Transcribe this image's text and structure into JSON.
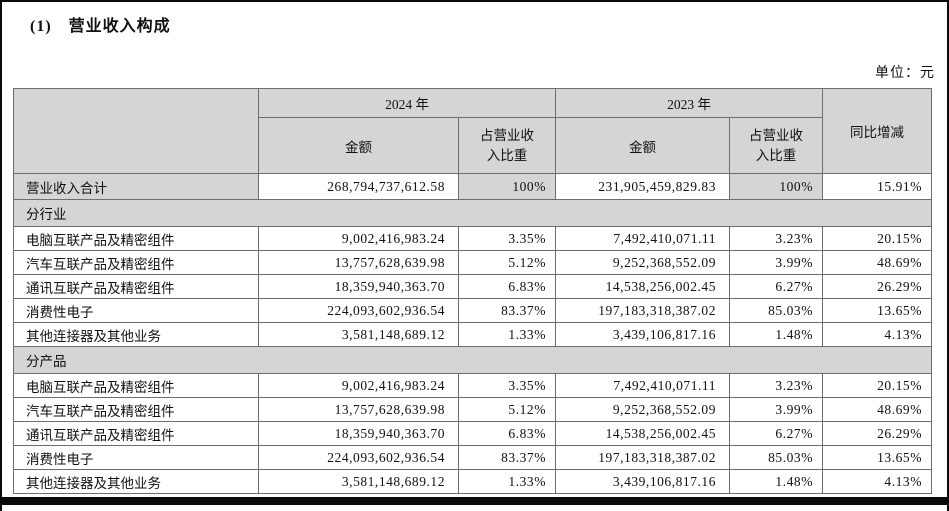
{
  "page": {
    "title": "(1)　营业收入构成",
    "unit_label": "单位：元"
  },
  "table": {
    "header": {
      "year_2024": "2024 年",
      "year_2023": "2023 年",
      "amount": "金额",
      "share": "占营业收\n入比重",
      "yoy": "同比增减"
    },
    "total_row": {
      "label": "营业收入合计",
      "amount_2024": "268,794,737,612.58",
      "share_2024": "100%",
      "amount_2023": "231,905,459,829.83",
      "share_2023": "100%",
      "yoy": "15.91%"
    },
    "sections": [
      {
        "label": "分行业",
        "rows": [
          {
            "label": "电脑互联产品及精密组件",
            "amount_2024": "9,002,416,983.24",
            "share_2024": "3.35%",
            "amount_2023": "7,492,410,071.11",
            "share_2023": "3.23%",
            "yoy": "20.15%"
          },
          {
            "label": "汽车互联产品及精密组件",
            "amount_2024": "13,757,628,639.98",
            "share_2024": "5.12%",
            "amount_2023": "9,252,368,552.09",
            "share_2023": "3.99%",
            "yoy": "48.69%"
          },
          {
            "label": "通讯互联产品及精密组件",
            "amount_2024": "18,359,940,363.70",
            "share_2024": "6.83%",
            "amount_2023": "14,538,256,002.45",
            "share_2023": "6.27%",
            "yoy": "26.29%"
          },
          {
            "label": "消费性电子",
            "amount_2024": "224,093,602,936.54",
            "share_2024": "83.37%",
            "amount_2023": "197,183,318,387.02",
            "share_2023": "85.03%",
            "yoy": "13.65%"
          },
          {
            "label": "其他连接器及其他业务",
            "amount_2024": "3,581,148,689.12",
            "share_2024": "1.33%",
            "amount_2023": "3,439,106,817.16",
            "share_2023": "1.48%",
            "yoy": "4.13%"
          }
        ]
      },
      {
        "label": "分产品",
        "rows": [
          {
            "label": "电脑互联产品及精密组件",
            "amount_2024": "9,002,416,983.24",
            "share_2024": "3.35%",
            "amount_2023": "7,492,410,071.11",
            "share_2023": "3.23%",
            "yoy": "20.15%"
          },
          {
            "label": "汽车互联产品及精密组件",
            "amount_2024": "13,757,628,639.98",
            "share_2024": "5.12%",
            "amount_2023": "9,252,368,552.09",
            "share_2023": "3.99%",
            "yoy": "48.69%"
          },
          {
            "label": "通讯互联产品及精密组件",
            "amount_2024": "18,359,940,363.70",
            "share_2024": "6.83%",
            "amount_2023": "14,538,256,002.45",
            "share_2023": "6.27%",
            "yoy": "26.29%"
          },
          {
            "label": "消费性电子",
            "amount_2024": "224,093,602,936.54",
            "share_2024": "83.37%",
            "amount_2023": "197,183,318,387.02",
            "share_2023": "85.03%",
            "yoy": "13.65%"
          },
          {
            "label": "其他连接器及其他业务",
            "amount_2024": "3,581,148,689.12",
            "share_2024": "1.33%",
            "amount_2023": "3,439,106,817.16",
            "share_2023": "1.48%",
            "yoy": "4.13%"
          }
        ]
      }
    ]
  }
}
